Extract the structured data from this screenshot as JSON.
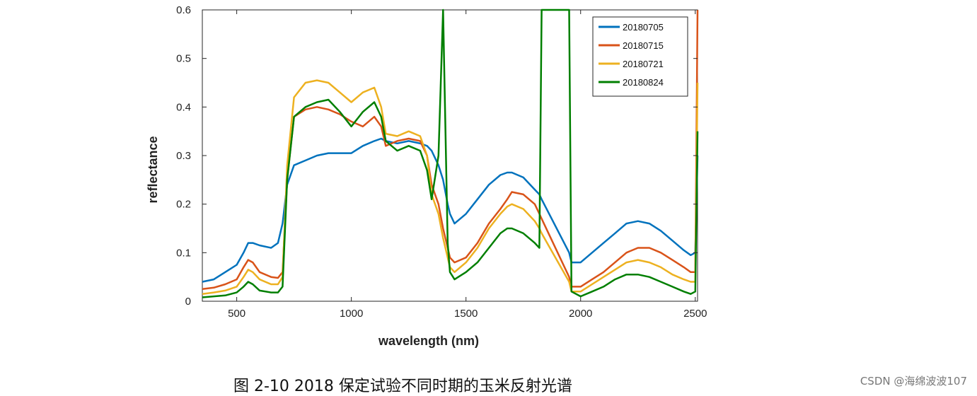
{
  "caption": "图 2-10 2018 保定试验不同时期的玉米反射光谱",
  "credit": "CSDN @海绵波波107",
  "chart_data": {
    "type": "line",
    "xlabel": "wavelength (nm)",
    "ylabel": "reflectance",
    "xlim": [
      350,
      2510
    ],
    "ylim": [
      0,
      0.6
    ],
    "xticks": [
      500,
      1000,
      1500,
      2000,
      2500
    ],
    "yticks": [
      0,
      0.1,
      0.2,
      0.3,
      0.4,
      0.5,
      0.6
    ],
    "grid": false,
    "legend": "top-right",
    "series": [
      {
        "name": "20180705",
        "color": "#0072BD",
        "x": [
          350,
          400,
          450,
          500,
          530,
          550,
          570,
          600,
          650,
          680,
          700,
          720,
          750,
          800,
          850,
          900,
          950,
          1000,
          1050,
          1100,
          1130,
          1150,
          1200,
          1250,
          1300,
          1330,
          1350,
          1380,
          1400,
          1420,
          1430,
          1450,
          1500,
          1550,
          1600,
          1650,
          1680,
          1700,
          1750,
          1800,
          1820,
          1830,
          1950,
          1960,
          2000,
          2050,
          2100,
          2150,
          2200,
          2250,
          2300,
          2350,
          2400,
          2450,
          2480,
          2500,
          2510
        ],
        "y": [
          0.04,
          0.045,
          0.06,
          0.075,
          0.1,
          0.12,
          0.12,
          0.115,
          0.11,
          0.12,
          0.16,
          0.24,
          0.28,
          0.29,
          0.3,
          0.305,
          0.305,
          0.305,
          0.32,
          0.33,
          0.335,
          0.33,
          0.325,
          0.33,
          0.325,
          0.32,
          0.31,
          0.28,
          0.25,
          0.2,
          0.18,
          0.16,
          0.18,
          0.21,
          0.24,
          0.26,
          0.265,
          0.265,
          0.255,
          0.23,
          0.22,
          0.21,
          0.1,
          0.08,
          0.08,
          0.1,
          0.12,
          0.14,
          0.16,
          0.165,
          0.16,
          0.145,
          0.125,
          0.105,
          0.095,
          0.1,
          0.3
        ]
      },
      {
        "name": "20180715",
        "color": "#D95319",
        "x": [
          350,
          400,
          450,
          500,
          530,
          550,
          570,
          600,
          650,
          680,
          700,
          720,
          750,
          800,
          850,
          900,
          950,
          1000,
          1050,
          1100,
          1130,
          1150,
          1200,
          1250,
          1300,
          1330,
          1350,
          1380,
          1400,
          1420,
          1430,
          1450,
          1500,
          1550,
          1600,
          1650,
          1680,
          1700,
          1750,
          1800,
          1820,
          1830,
          1950,
          1960,
          2000,
          2050,
          2100,
          2150,
          2200,
          2250,
          2300,
          2350,
          2400,
          2450,
          2480,
          2500,
          2510
        ],
        "y": [
          0.025,
          0.028,
          0.035,
          0.045,
          0.07,
          0.085,
          0.08,
          0.06,
          0.05,
          0.048,
          0.06,
          0.25,
          0.38,
          0.395,
          0.4,
          0.395,
          0.385,
          0.37,
          0.36,
          0.38,
          0.36,
          0.32,
          0.33,
          0.335,
          0.33,
          0.3,
          0.24,
          0.2,
          0.15,
          0.11,
          0.09,
          0.08,
          0.09,
          0.12,
          0.16,
          0.19,
          0.21,
          0.225,
          0.22,
          0.2,
          0.18,
          0.17,
          0.05,
          0.03,
          0.03,
          0.045,
          0.06,
          0.08,
          0.1,
          0.11,
          0.11,
          0.1,
          0.085,
          0.07,
          0.06,
          0.06,
          0.6
        ]
      },
      {
        "name": "20180721",
        "color": "#EDB120",
        "x": [
          350,
          400,
          450,
          500,
          530,
          550,
          570,
          600,
          650,
          680,
          700,
          720,
          750,
          800,
          850,
          900,
          950,
          1000,
          1050,
          1100,
          1130,
          1150,
          1200,
          1250,
          1300,
          1330,
          1350,
          1380,
          1400,
          1420,
          1430,
          1450,
          1500,
          1550,
          1600,
          1650,
          1680,
          1700,
          1750,
          1800,
          1820,
          1830,
          1950,
          1960,
          2000,
          2050,
          2100,
          2150,
          2200,
          2250,
          2300,
          2350,
          2400,
          2450,
          2480,
          2500,
          2510
        ],
        "y": [
          0.015,
          0.018,
          0.022,
          0.03,
          0.05,
          0.065,
          0.06,
          0.045,
          0.035,
          0.035,
          0.05,
          0.28,
          0.42,
          0.45,
          0.455,
          0.45,
          0.43,
          0.41,
          0.43,
          0.44,
          0.4,
          0.345,
          0.34,
          0.35,
          0.34,
          0.3,
          0.22,
          0.18,
          0.13,
          0.09,
          0.07,
          0.06,
          0.08,
          0.11,
          0.15,
          0.18,
          0.195,
          0.2,
          0.19,
          0.165,
          0.15,
          0.14,
          0.04,
          0.02,
          0.02,
          0.035,
          0.05,
          0.065,
          0.08,
          0.085,
          0.08,
          0.07,
          0.055,
          0.045,
          0.04,
          0.04,
          0.45
        ]
      },
      {
        "name": "20180824",
        "color": "#007F00",
        "x": [
          350,
          400,
          450,
          500,
          530,
          550,
          570,
          600,
          650,
          680,
          700,
          720,
          750,
          800,
          850,
          900,
          950,
          1000,
          1050,
          1100,
          1130,
          1150,
          1200,
          1250,
          1300,
          1330,
          1350,
          1380,
          1400,
          1420,
          1430,
          1450,
          1500,
          1550,
          1600,
          1650,
          1680,
          1700,
          1750,
          1800,
          1820,
          1830,
          1950,
          1960,
          2000,
          2050,
          2100,
          2150,
          2200,
          2250,
          2300,
          2350,
          2400,
          2450,
          2480,
          2500,
          2510
        ],
        "y": [
          0.008,
          0.01,
          0.012,
          0.018,
          0.03,
          0.04,
          0.035,
          0.022,
          0.018,
          0.018,
          0.03,
          0.25,
          0.38,
          0.4,
          0.41,
          0.415,
          0.39,
          0.36,
          0.39,
          0.41,
          0.38,
          0.33,
          0.31,
          0.32,
          0.31,
          0.27,
          0.21,
          0.3,
          0.6,
          0.12,
          0.06,
          0.045,
          0.06,
          0.08,
          0.11,
          0.14,
          0.15,
          0.15,
          0.14,
          0.12,
          0.11,
          0.6,
          0.6,
          0.02,
          0.01,
          0.02,
          0.03,
          0.045,
          0.055,
          0.055,
          0.05,
          0.04,
          0.03,
          0.02,
          0.015,
          0.02,
          0.35
        ]
      }
    ]
  }
}
